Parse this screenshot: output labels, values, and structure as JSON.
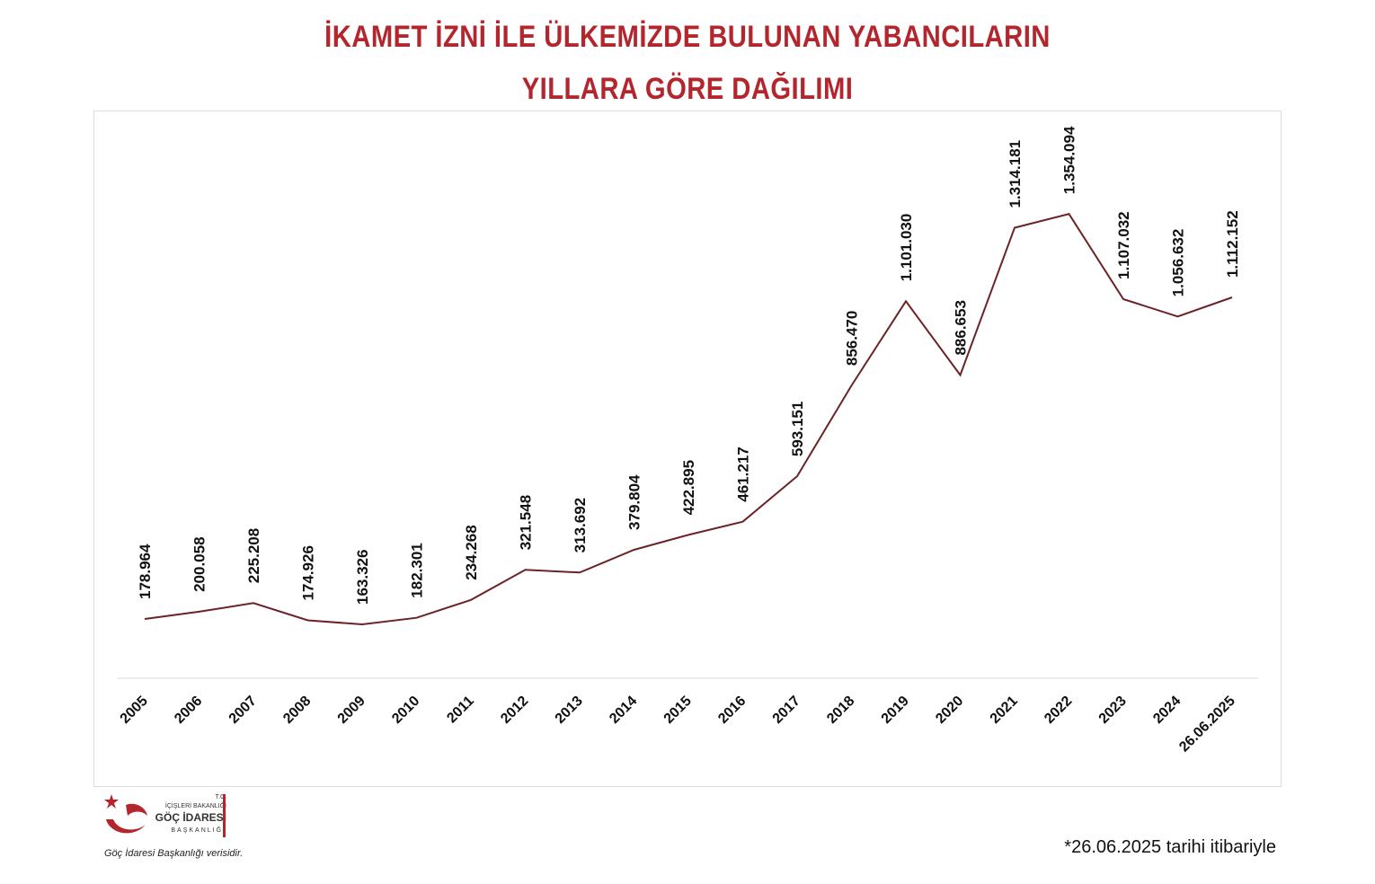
{
  "title_line1": "İKAMET İZNİ İLE ÜLKEMİZDE BULUNAN YABANCILARIN",
  "title_line2": "YILLARA GÖRE DAĞILIMI",
  "chart_data": {
    "type": "line",
    "title": "İKAMET İZNİ İLE ÜLKEMİZDE BULUNAN YABANCILARIN YILLARA GÖRE DAĞILIMI",
    "categories": [
      "2005",
      "2006",
      "2007",
      "2008",
      "2009",
      "2010",
      "2011",
      "2012",
      "2013",
      "2014",
      "2015",
      "2016",
      "2017",
      "2018",
      "2019",
      "2020",
      "2021",
      "2022",
      "2023",
      "2024",
      "26.06.2025"
    ],
    "values": [
      178964,
      200058,
      225208,
      174926,
      163326,
      182301,
      234268,
      321548,
      313692,
      379804,
      422895,
      461217,
      593151,
      856470,
      1101030,
      886653,
      1314181,
      1354094,
      1107032,
      1056632,
      1112152
    ],
    "value_labels": [
      "178.964",
      "200.058",
      "225.208",
      "174.926",
      "163.326",
      "182.301",
      "234.268",
      "321.548",
      "313.692",
      "379.804",
      "422.895",
      "461.217",
      "593.151",
      "856.470",
      "1.101.030",
      "886.653",
      "1.314.181",
      "1.354.094",
      "1.107.032",
      "1.056.632",
      "1.112.152"
    ],
    "line_color": "#6b2326",
    "grid": false,
    "legend": "none"
  },
  "logo": {
    "line1": "T.C.",
    "line2": "İÇİŞLERİ BAKANLIĞI",
    "line3": "GÖÇ İDARESİ",
    "line4": "BAŞKANLIĞI",
    "accent": "#b3262d",
    "icon": "crescent-star-bird-icon"
  },
  "source_note": "Göç İdaresi Başkanlığı verisidir.",
  "footnote": "*26.06.2025 tarihi itibariyle"
}
